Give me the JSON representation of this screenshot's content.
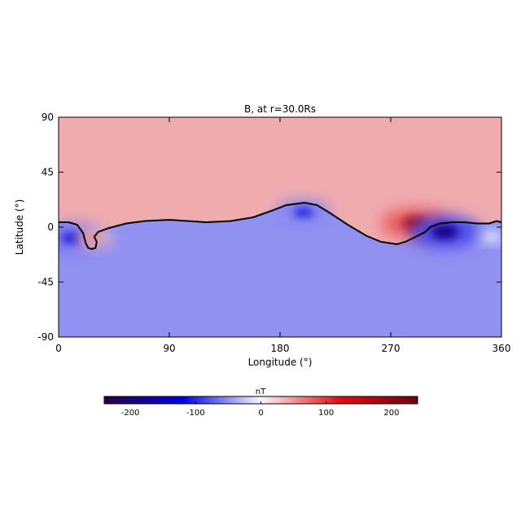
{
  "chart_data": {
    "type": "heatmap",
    "title": "B, at r=30.0Rs",
    "xlabel": "Longitude (°)",
    "ylabel": "Latitude (°)",
    "xlim": [
      0,
      360
    ],
    "ylim": [
      -90,
      90
    ],
    "x_ticks": [
      "0",
      "90",
      "180",
      "270",
      "360"
    ],
    "y_ticks": [
      "90",
      "45",
      "0",
      "-45",
      "-90"
    ],
    "x_tick_values": [
      0,
      90,
      180,
      270,
      360
    ],
    "y_tick_values": [
      90,
      45,
      0,
      -45,
      -90
    ],
    "colorbar": {
      "label": "nT",
      "range": [
        -240,
        240
      ],
      "ticks": [
        "-200",
        "-100",
        "0",
        "100",
        "200"
      ],
      "tick_values": [
        -200,
        -100,
        0,
        100,
        200
      ],
      "colors": {
        "min": "#2a0140",
        "negative": "#0000e0",
        "zero": "#f8f8ff",
        "positive": "#e01010",
        "max": "#6e0010"
      }
    },
    "background": {
      "north_value": 60,
      "south_value": -75
    },
    "neutral_line": [
      [
        0,
        4
      ],
      [
        8,
        4
      ],
      [
        15,
        2
      ],
      [
        20,
        -5
      ],
      [
        22,
        -13
      ],
      [
        24,
        -17
      ],
      [
        27,
        -18
      ],
      [
        30,
        -17
      ],
      [
        31,
        -12
      ],
      [
        29,
        -8
      ],
      [
        32,
        -4
      ],
      [
        40,
        -1
      ],
      [
        55,
        3
      ],
      [
        70,
        5
      ],
      [
        90,
        6
      ],
      [
        105,
        5
      ],
      [
        120,
        4
      ],
      [
        140,
        5
      ],
      [
        158,
        8
      ],
      [
        172,
        13
      ],
      [
        185,
        18
      ],
      [
        200,
        20
      ],
      [
        210,
        18
      ],
      [
        220,
        12
      ],
      [
        235,
        2
      ],
      [
        250,
        -7
      ],
      [
        262,
        -12
      ],
      [
        275,
        -14
      ],
      [
        282,
        -12
      ],
      [
        290,
        -8
      ],
      [
        298,
        -4
      ],
      [
        302,
        0
      ],
      [
        310,
        3
      ],
      [
        320,
        4
      ],
      [
        330,
        4
      ],
      [
        340,
        3
      ],
      [
        350,
        3
      ],
      [
        356,
        5
      ],
      [
        360,
        4
      ]
    ],
    "features": [
      {
        "name": "blue-core-lon15",
        "lon": 13,
        "lat": -9,
        "value": -180
      },
      {
        "name": "red-spot-lon28",
        "lon": 28,
        "lat": -9,
        "value": 90
      },
      {
        "name": "blue-core-lon200",
        "lon": 199,
        "lat": 12,
        "value": -150
      },
      {
        "name": "red-core-lon290",
        "lon": 290,
        "lat": 3,
        "value": 220
      },
      {
        "name": "blue-core-lon315",
        "lon": 314,
        "lat": -4,
        "value": -230
      },
      {
        "name": "pale-band-lon350",
        "lon": 352,
        "lat": -8,
        "value": -15
      }
    ]
  }
}
